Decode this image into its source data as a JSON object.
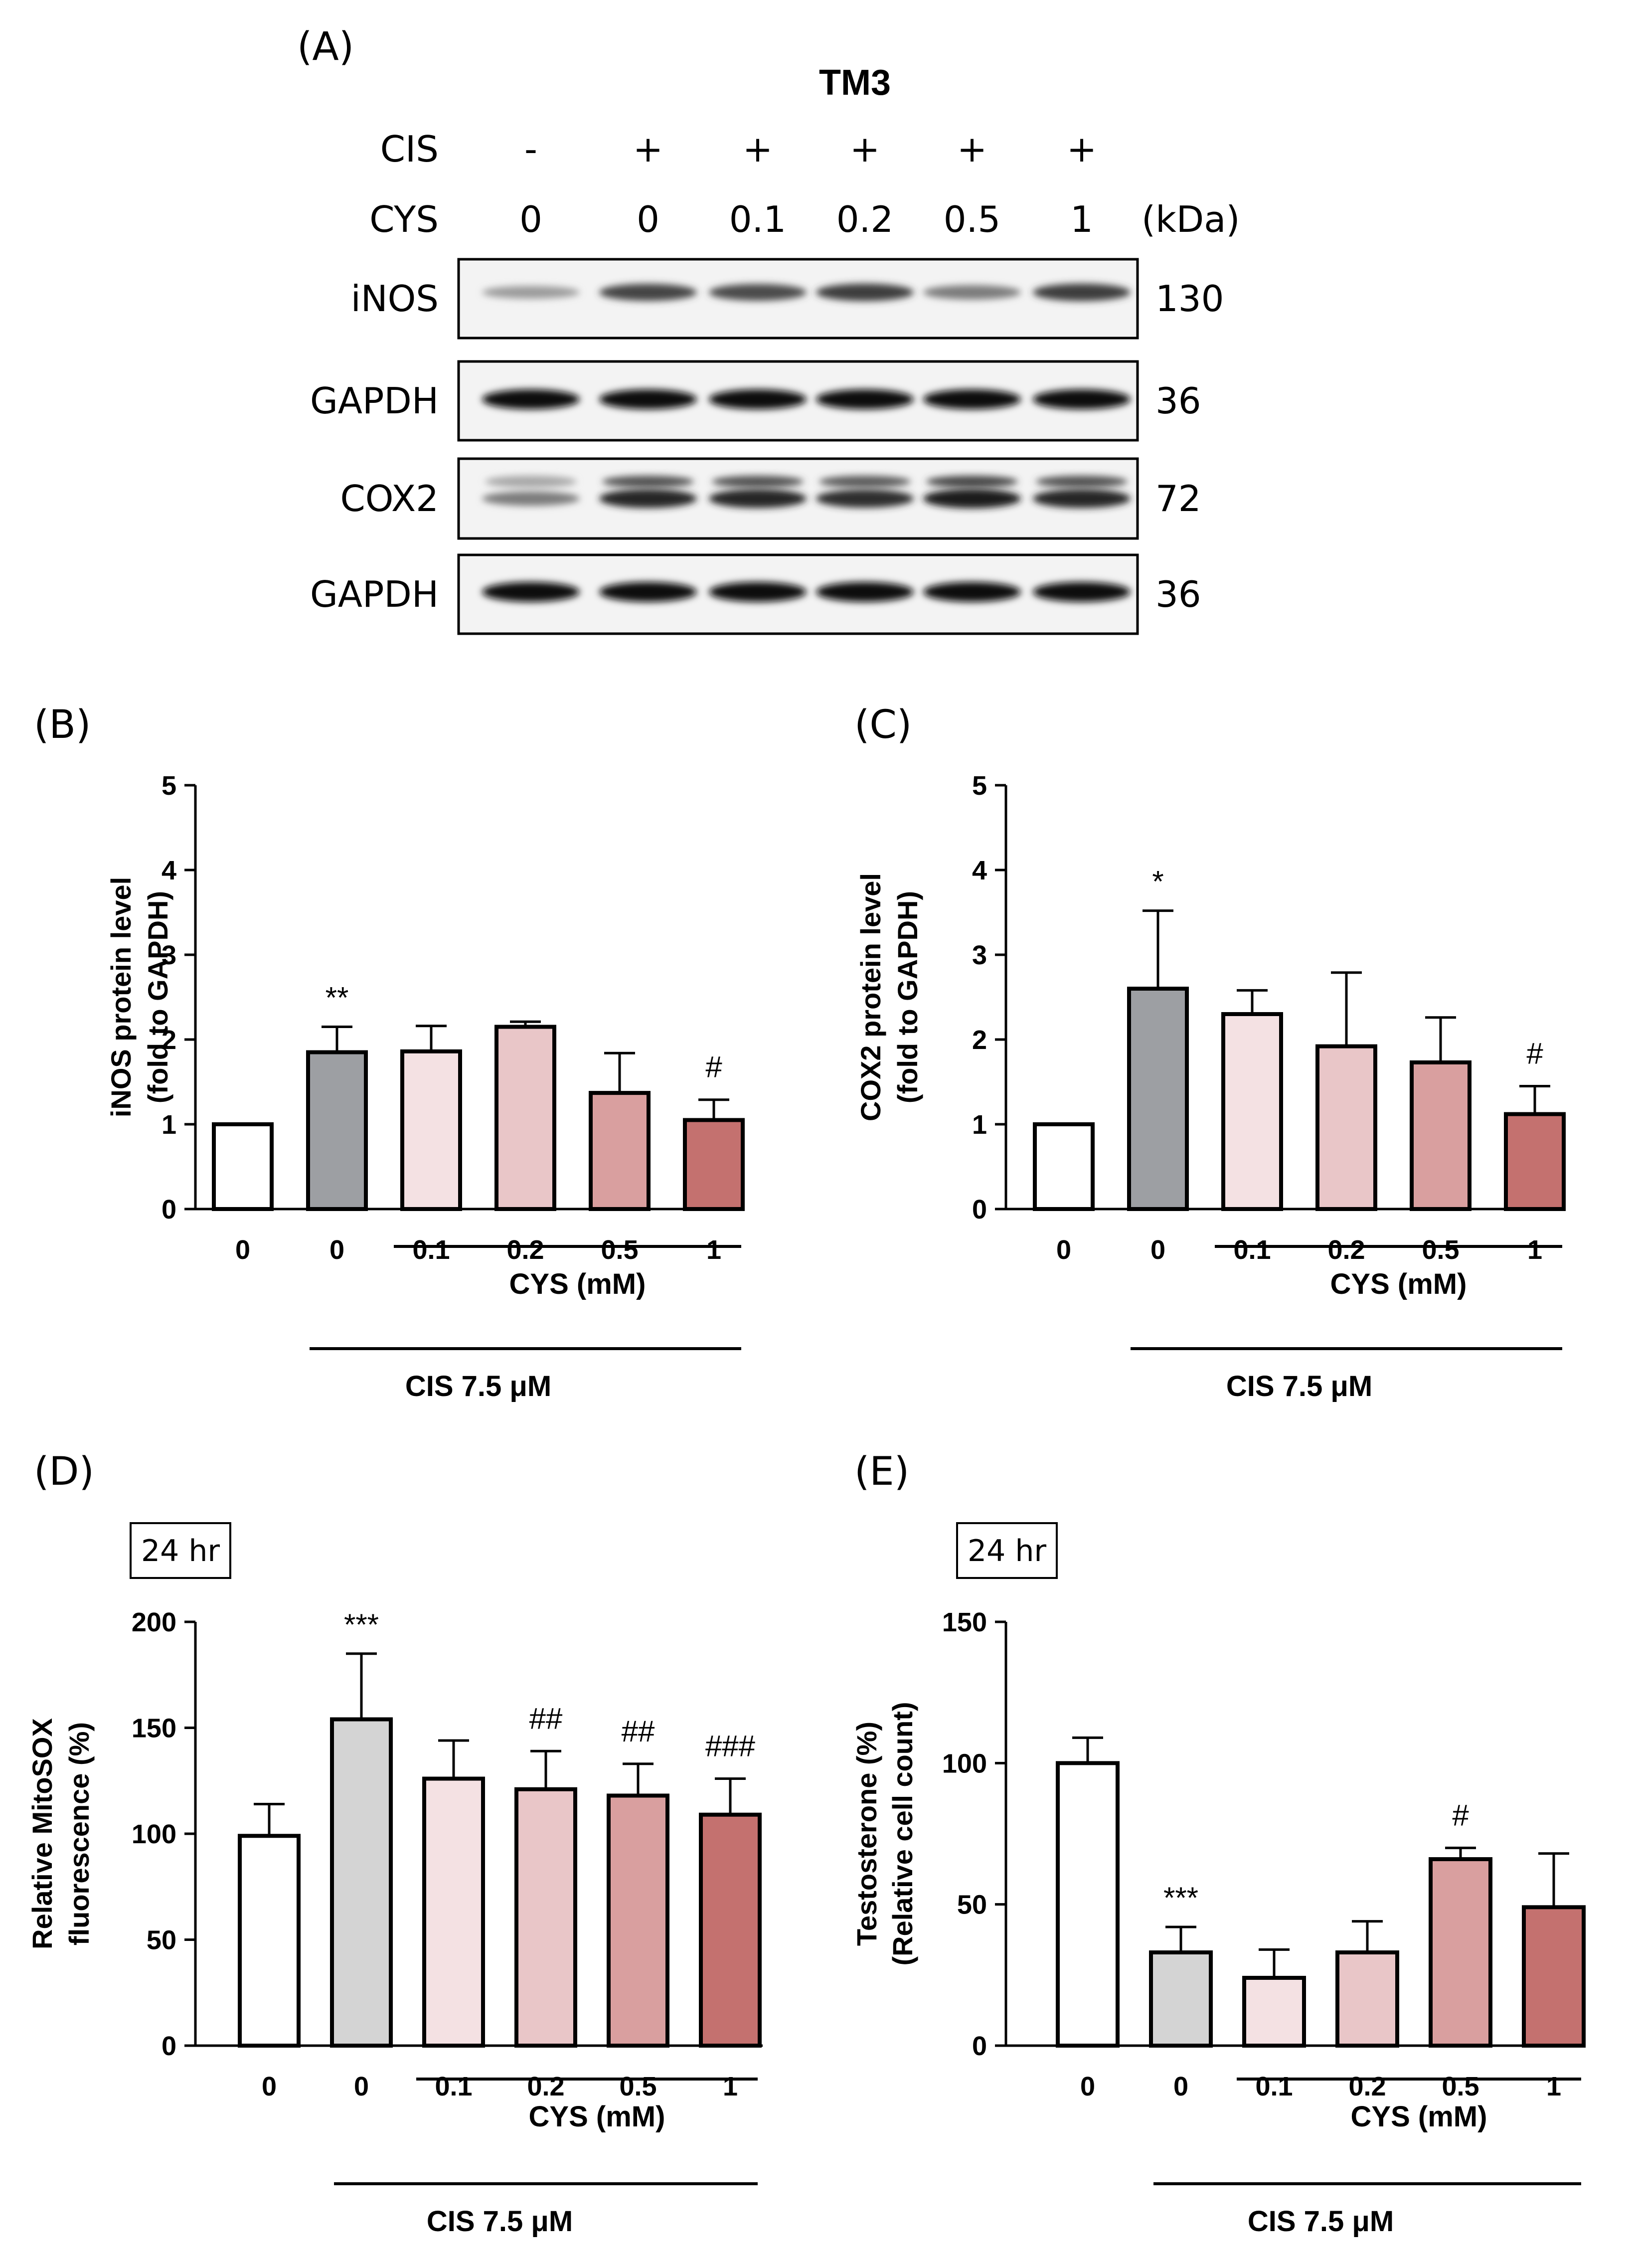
{
  "panel_a": {
    "label": "(A)",
    "title": "TM3",
    "row_labels": [
      "CIS",
      "CYS"
    ],
    "cis": [
      "-",
      "+",
      "+",
      "+",
      "+",
      "+"
    ],
    "cys": [
      "0",
      "0",
      "0.1",
      "0.2",
      "0.5",
      "1"
    ],
    "kda_unit": "(kDa)",
    "blots": [
      {
        "name": "iNOS",
        "kda": "130",
        "intensity": [
          0.35,
          0.75,
          0.72,
          0.78,
          0.5,
          0.78
        ]
      },
      {
        "name": "GAPDH",
        "kda": "36",
        "intensity": [
          1,
          1,
          1,
          1,
          1,
          1
        ]
      },
      {
        "name": "COX2",
        "kda": "72",
        "intensity": [
          0.5,
          0.9,
          0.9,
          0.85,
          0.95,
          0.9
        ]
      },
      {
        "name": "GAPDH",
        "kda": "36",
        "intensity": [
          1,
          1,
          1,
          1,
          1,
          1
        ]
      }
    ]
  },
  "colors": {
    "white": "#ffffff",
    "gray": "#9d9fa3",
    "light_gray": "#d4d4d4",
    "pink1": "#f4e1e3",
    "pink2": "#e9c6c8",
    "pink3": "#d99f9f",
    "pink4": "#c4716f",
    "bar_edge": "#000000"
  },
  "chart_data": [
    {
      "panel": "(B)",
      "type": "bar",
      "categories": [
        "0",
        "0",
        "0.1",
        "0.2",
        "0.5",
        "1"
      ],
      "values": [
        1.0,
        1.85,
        1.86,
        2.15,
        1.37,
        1.05
      ],
      "errors": [
        0,
        0.3,
        0.3,
        0.06,
        0.47,
        0.24
      ],
      "colors": [
        "#ffffff",
        "#9d9fa3",
        "#f4e1e3",
        "#e9c6c8",
        "#d99f9f",
        "#c4716f"
      ],
      "significance": [
        "",
        "**",
        "",
        "",
        "",
        "#"
      ],
      "ylabel": [
        "iNOS protein level",
        "(fold to GAPDH)"
      ],
      "ylim": [
        0,
        5
      ],
      "yticks": [
        "0",
        "1",
        "2",
        "3",
        "4",
        "5"
      ],
      "group_labels": [
        "CYS (mM)",
        "CIS 7.5 μM"
      ]
    },
    {
      "panel": "(C)",
      "type": "bar",
      "categories": [
        "0",
        "0",
        "0.1",
        "0.2",
        "0.5",
        "1"
      ],
      "values": [
        1.0,
        2.6,
        2.3,
        1.92,
        1.73,
        1.12
      ],
      "errors": [
        0,
        0.92,
        0.28,
        0.87,
        0.53,
        0.33
      ],
      "colors": [
        "#ffffff",
        "#9d9fa3",
        "#f4e1e3",
        "#e9c6c8",
        "#d99f9f",
        "#c4716f"
      ],
      "significance": [
        "",
        "*",
        "",
        "",
        "",
        "#"
      ],
      "ylabel": [
        "COX2 protein level",
        "(fold to GAPDH)"
      ],
      "ylim": [
        0,
        5
      ],
      "yticks": [
        "0",
        "1",
        "2",
        "3",
        "4",
        "5"
      ],
      "group_labels": [
        "CYS (mM)",
        "CIS 7.5 μM"
      ]
    },
    {
      "panel": "(D)",
      "type": "bar",
      "timepoint": "24 hr",
      "categories": [
        "0",
        "0",
        "0.1",
        "0.2",
        "0.5",
        "1"
      ],
      "values": [
        99,
        154,
        126,
        121,
        118,
        109
      ],
      "errors": [
        15,
        31,
        18,
        18,
        15,
        17
      ],
      "colors": [
        "#ffffff",
        "#d4d4d4",
        "#f4e1e3",
        "#e9c6c8",
        "#d99f9f",
        "#c4716f"
      ],
      "significance": [
        "",
        "***",
        "",
        "##",
        "##",
        "###"
      ],
      "ylabel": [
        "Relative MitoSOX",
        "fluorescence (%)"
      ],
      "ylim": [
        0,
        200
      ],
      "yticks": [
        "0",
        "50",
        "100",
        "150",
        "200"
      ],
      "group_labels": [
        "CYS (mM)",
        "CIS 7.5 μM"
      ]
    },
    {
      "panel": "(E)",
      "type": "bar",
      "timepoint": "24 hr",
      "categories": [
        "0",
        "0",
        "0.1",
        "0.2",
        "0.5",
        "1"
      ],
      "values": [
        100,
        33,
        24,
        33,
        66,
        49
      ],
      "errors": [
        9,
        9,
        10,
        11,
        4,
        19
      ],
      "colors": [
        "#ffffff",
        "#d4d4d4",
        "#f4e1e3",
        "#e9c6c8",
        "#d99f9f",
        "#c4716f"
      ],
      "significance": [
        "",
        "***",
        "",
        "",
        "#",
        ""
      ],
      "ylabel": [
        "Testosterone (%)",
        "(Relative cell count)"
      ],
      "ylim": [
        0,
        150
      ],
      "yticks": [
        "0",
        "50",
        "100",
        "150"
      ],
      "group_labels": [
        "CYS (mM)",
        "CIS 7.5 μM"
      ]
    }
  ]
}
